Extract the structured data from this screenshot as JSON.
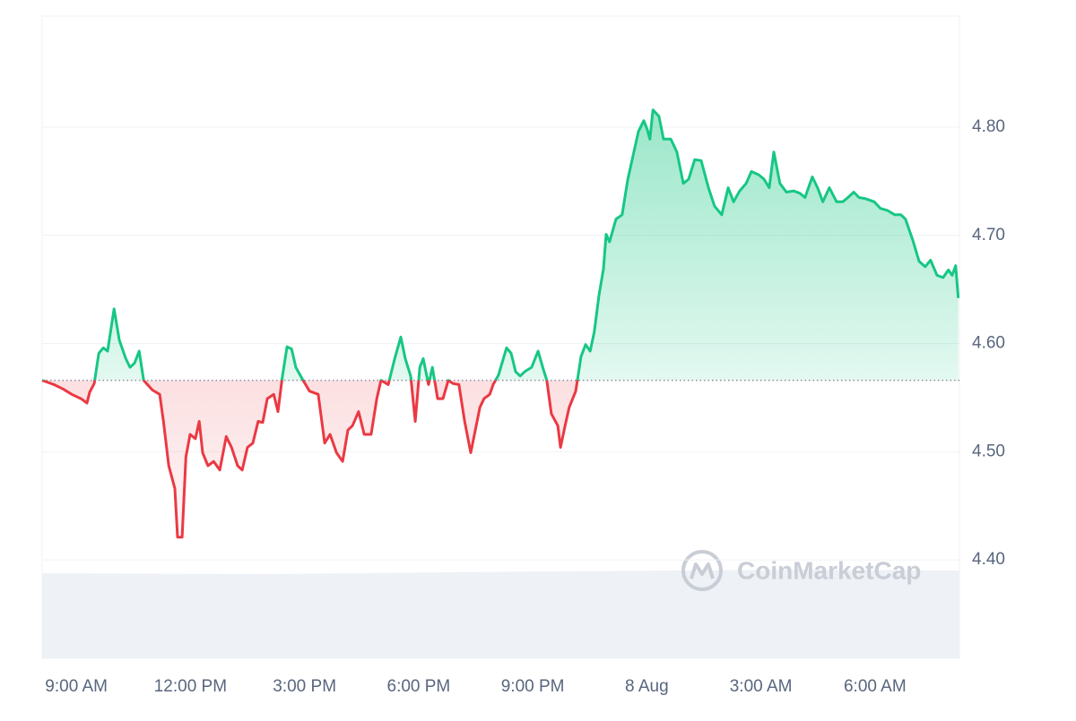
{
  "chart_data": {
    "type": "baseline-line",
    "watermark": "CoinMarketCap",
    "color_up": "#16c784",
    "color_down": "#ea3943",
    "grid": true,
    "baseline": 4.566,
    "xlim": [
      -0.9,
      23.22
    ],
    "ylim": [
      4.309,
      4.901
    ],
    "xticks": [
      {
        "value": 0,
        "label": "9:00 AM"
      },
      {
        "value": 3,
        "label": "12:00 PM"
      },
      {
        "value": 6,
        "label": "3:00 PM"
      },
      {
        "value": 9,
        "label": "6:00 PM"
      },
      {
        "value": 12,
        "label": "9:00 PM"
      },
      {
        "value": 15,
        "label": "8 Aug"
      },
      {
        "value": 18,
        "label": "3:00 AM"
      },
      {
        "value": 21,
        "label": "6:00 AM"
      }
    ],
    "yticks": [
      {
        "value": 4.4,
        "label": "4.40"
      },
      {
        "value": 4.5,
        "label": "4.50"
      },
      {
        "value": 4.6,
        "label": "4.60"
      },
      {
        "value": 4.7,
        "label": "4.70"
      },
      {
        "value": 4.8,
        "label": "4.80"
      }
    ],
    "x": [
      -0.9,
      -0.59,
      -0.35,
      -0.12,
      0.12,
      0.28,
      0.35,
      0.47,
      0.59,
      0.71,
      0.82,
      0.99,
      1.13,
      1.3,
      1.41,
      1.53,
      1.65,
      1.77,
      2.0,
      2.19,
      2.29,
      2.43,
      2.59,
      2.66,
      2.78,
      2.88,
      2.99,
      3.13,
      3.23,
      3.32,
      3.46,
      3.61,
      3.77,
      3.94,
      4.08,
      4.24,
      4.36,
      4.5,
      4.64,
      4.78,
      4.9,
      5.02,
      5.19,
      5.3,
      5.42,
      5.54,
      5.66,
      5.77,
      5.96,
      6.13,
      6.36,
      6.53,
      6.67,
      6.84,
      7.0,
      7.14,
      7.26,
      7.42,
      7.57,
      7.75,
      7.9,
      8.01,
      8.2,
      8.37,
      8.53,
      8.65,
      8.79,
      8.91,
      9.03,
      9.12,
      9.26,
      9.36,
      9.5,
      9.64,
      9.78,
      9.9,
      10.06,
      10.21,
      10.37,
      10.49,
      10.61,
      10.72,
      10.87,
      10.96,
      11.1,
      11.31,
      11.43,
      11.55,
      11.67,
      11.79,
      11.97,
      12.14,
      12.28,
      12.37,
      12.49,
      12.66,
      12.73,
      12.85,
      12.96,
      13.13,
      13.27,
      13.39,
      13.51,
      13.62,
      13.74,
      13.86,
      13.93,
      14.02,
      14.19,
      14.35,
      14.5,
      14.66,
      14.78,
      14.92,
      15.01,
      15.08,
      15.16,
      15.32,
      15.44,
      15.63,
      15.79,
      15.96,
      16.1,
      16.26,
      16.43,
      16.62,
      16.78,
      16.97,
      17.14,
      17.28,
      17.44,
      17.61,
      17.75,
      17.94,
      18.08,
      18.22,
      18.34,
      18.5,
      18.67,
      18.86,
      19.02,
      19.16,
      19.35,
      19.49,
      19.63,
      19.8,
      19.99,
      20.15,
      20.29,
      20.44,
      20.58,
      20.74,
      20.98,
      21.14,
      21.33,
      21.52,
      21.68,
      21.8,
      21.99,
      22.16,
      22.32,
      22.46,
      22.63,
      22.79,
      22.93,
      23.03,
      23.12,
      23.19
    ],
    "values": [
      4.566,
      4.562,
      4.558,
      4.553,
      4.549,
      4.545,
      4.555,
      4.563,
      4.591,
      4.596,
      4.593,
      4.632,
      4.603,
      4.586,
      4.578,
      4.582,
      4.593,
      4.566,
      4.557,
      4.553,
      4.528,
      4.487,
      4.466,
      4.421,
      4.421,
      4.495,
      4.516,
      4.512,
      4.528,
      4.499,
      4.487,
      4.491,
      4.483,
      4.514,
      4.504,
      4.487,
      4.483,
      4.504,
      4.508,
      4.528,
      4.527,
      4.549,
      4.553,
      4.537,
      4.57,
      4.597,
      4.595,
      4.578,
      4.566,
      4.556,
      4.553,
      4.508,
      4.516,
      4.499,
      4.491,
      4.52,
      4.524,
      4.537,
      4.516,
      4.516,
      4.549,
      4.566,
      4.562,
      4.586,
      4.606,
      4.586,
      4.57,
      4.528,
      4.578,
      4.586,
      4.562,
      4.578,
      4.549,
      4.549,
      4.566,
      4.563,
      4.562,
      4.528,
      4.499,
      4.52,
      4.541,
      4.549,
      4.553,
      4.562,
      4.571,
      4.596,
      4.591,
      4.574,
      4.57,
      4.574,
      4.578,
      4.593,
      4.576,
      4.566,
      4.535,
      4.524,
      4.504,
      4.524,
      4.541,
      4.556,
      4.588,
      4.599,
      4.593,
      4.611,
      4.644,
      4.669,
      4.701,
      4.694,
      4.715,
      4.719,
      4.752,
      4.777,
      4.796,
      4.806,
      4.798,
      4.789,
      4.816,
      4.81,
      4.789,
      4.789,
      4.777,
      4.748,
      4.752,
      4.77,
      4.769,
      4.744,
      4.727,
      4.719,
      4.744,
      4.731,
      4.741,
      4.748,
      4.759,
      4.756,
      4.752,
      4.744,
      4.777,
      4.748,
      4.74,
      4.741,
      4.739,
      4.735,
      4.754,
      4.744,
      4.731,
      4.744,
      4.731,
      4.731,
      4.735,
      4.74,
      4.735,
      4.734,
      4.731,
      4.725,
      4.723,
      4.719,
      4.719,
      4.715,
      4.696,
      4.676,
      4.671,
      4.677,
      4.663,
      4.661,
      4.668,
      4.663,
      4.672,
      4.642
    ]
  }
}
